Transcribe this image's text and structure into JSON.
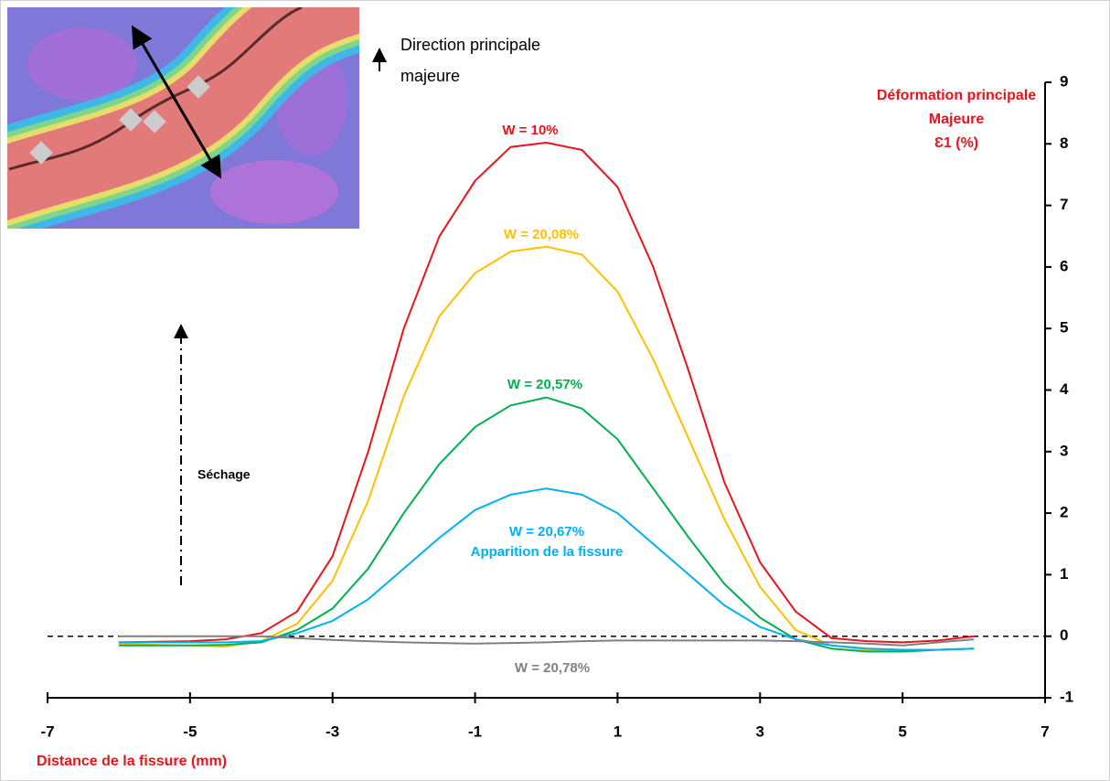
{
  "chart_data": {
    "type": "line",
    "x_label": "Distance de la fissure (mm)",
    "y_label": [
      "Déformation principale",
      "Majeure",
      "Ɛ1 (%)"
    ],
    "direction_label": [
      "Direction principale",
      "majeure"
    ],
    "annotations": [
      "Apparition de la fissure",
      "Séchage"
    ],
    "x": [
      -6,
      -5.5,
      -5,
      -4.5,
      -4,
      -3.5,
      -3,
      -2.5,
      -2,
      -1.5,
      -1,
      -0.5,
      0,
      0.5,
      1,
      1.5,
      2,
      2.5,
      3,
      3.5,
      4,
      4.5,
      5,
      5.5,
      6
    ],
    "series": [
      {
        "name": "W = 10%",
        "color": "#e8131b",
        "values": [
          -0.1,
          -0.09,
          -0.08,
          -0.05,
          0.05,
          0.4,
          1.3,
          3.0,
          5.0,
          6.5,
          7.4,
          7.95,
          8.02,
          7.9,
          7.3,
          6.0,
          4.3,
          2.5,
          1.2,
          0.4,
          -0.03,
          -0.08,
          -0.1,
          -0.07,
          0
        ]
      },
      {
        "name": "W = 20,08%",
        "color": "#ffc000",
        "values": [
          -0.12,
          -0.14,
          -0.15,
          -0.17,
          -0.08,
          0.2,
          0.9,
          2.2,
          3.9,
          5.2,
          5.9,
          6.25,
          6.33,
          6.2,
          5.6,
          4.5,
          3.2,
          1.9,
          0.8,
          0.1,
          -0.15,
          -0.22,
          -0.24,
          -0.22,
          -0.2
        ]
      },
      {
        "name": "W = 20,57%",
        "color": "#00b050",
        "values": [
          -0.15,
          -0.15,
          -0.15,
          -0.14,
          -0.1,
          0.1,
          0.45,
          1.1,
          2.0,
          2.8,
          3.4,
          3.75,
          3.88,
          3.7,
          3.2,
          2.4,
          1.6,
          0.85,
          0.3,
          -0.05,
          -0.2,
          -0.25,
          -0.25,
          -0.22,
          -0.2
        ]
      },
      {
        "name": "W = 20,67%",
        "color": "#00b0f0",
        "values": [
          -0.1,
          -0.1,
          -0.1,
          -0.1,
          -0.08,
          0.05,
          0.25,
          0.6,
          1.1,
          1.6,
          2.05,
          2.3,
          2.4,
          2.3,
          2.0,
          1.5,
          1.0,
          0.5,
          0.15,
          -0.05,
          -0.15,
          -0.2,
          -0.22,
          -0.22,
          -0.2
        ]
      },
      {
        "name": "W = 20,78%",
        "color": "#808080",
        "values": [
          0,
          0,
          0,
          0,
          0,
          -0.03,
          -0.06,
          -0.08,
          -0.1,
          -0.11,
          -0.12,
          -0.11,
          -0.1,
          -0.08,
          -0.07,
          -0.07,
          -0.07,
          -0.07,
          -0.07,
          -0.08,
          -0.1,
          -0.12,
          -0.15,
          -0.1,
          -0.05
        ]
      }
    ],
    "xlim": [
      -7,
      7
    ],
    "xticks": [
      -7,
      -5,
      -3,
      -1,
      1,
      3,
      5,
      7
    ],
    "ylim": [
      -1,
      9
    ],
    "yticks": [
      -1,
      0,
      1,
      2,
      3,
      4,
      5,
      6,
      7,
      8,
      9
    ],
    "zero_line": true
  }
}
